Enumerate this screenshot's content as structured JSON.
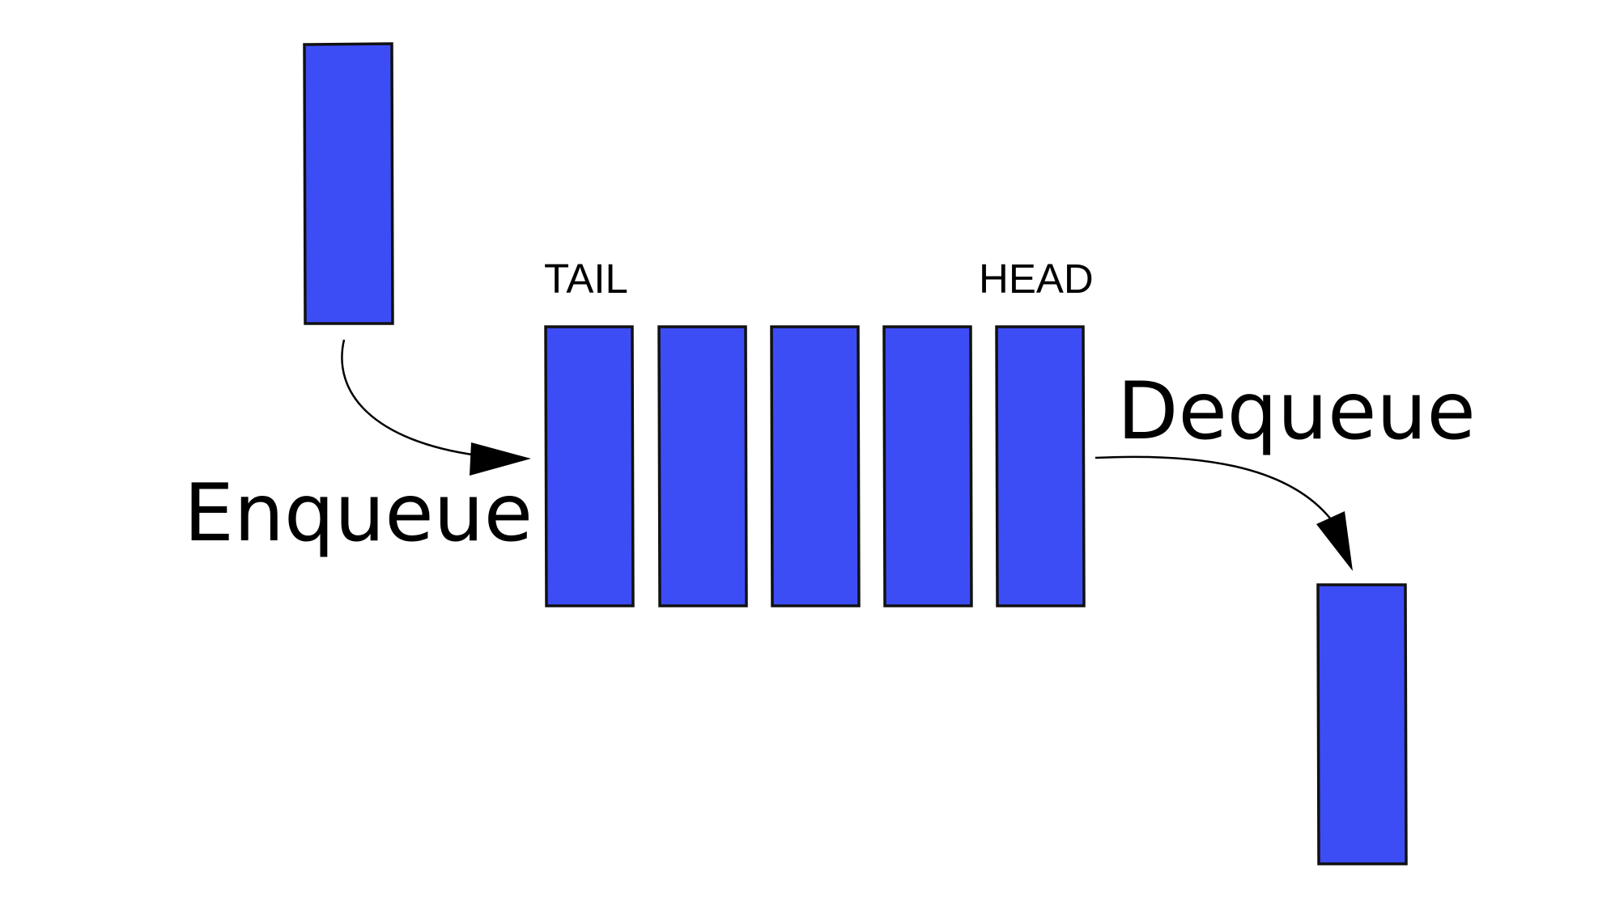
{
  "labels": {
    "tail": "TAIL",
    "head": "HEAD",
    "enqueue": "Enqueue",
    "dequeue": "Dequeue"
  },
  "colors": {
    "block_fill": "#3d4df5",
    "block_stroke": "#111111",
    "arrow": "#000000",
    "text": "#000000",
    "background": "#ffffff"
  },
  "queue": {
    "item_count": 5
  }
}
